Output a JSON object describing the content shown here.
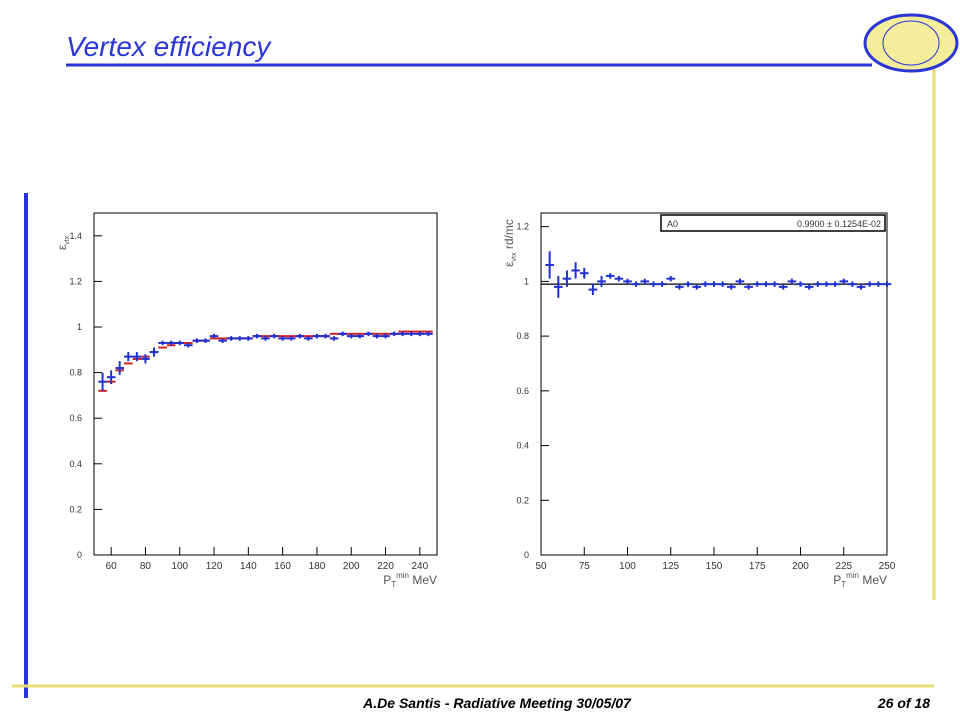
{
  "title": "Vertex efficiency",
  "footer": "A.De Santis - Radiative Meeting 30/05/07",
  "page": "26 of 18",
  "chart_data": [
    {
      "type": "scatter",
      "xlabel": {
        "main": "P",
        "sub": "T",
        "sup": "min",
        "unit": " MeV"
      },
      "ylabel": {
        "main": "ε",
        "sub": "vtx"
      },
      "xlim": [
        50,
        250
      ],
      "xticks": [
        60,
        80,
        100,
        120,
        140,
        160,
        180,
        200,
        220,
        240
      ],
      "ylim": [
        0,
        1.5
      ],
      "yticks": [
        0,
        0.2,
        0.4,
        0.6,
        0.8,
        1,
        1.2,
        1.4
      ],
      "series": [
        {
          "color": "#d42020",
          "style": "step",
          "x": [
            55,
            60,
            65,
            70,
            75,
            80,
            85,
            90,
            95,
            100,
            105,
            110,
            115,
            120,
            125,
            130,
            135,
            140,
            145,
            150,
            155,
            160,
            165,
            170,
            175,
            180,
            185,
            190,
            195,
            200,
            205,
            210,
            215,
            220,
            225,
            230,
            235,
            240,
            245
          ],
          "values": [
            0.72,
            0.76,
            0.81,
            0.84,
            0.86,
            0.87,
            0.89,
            0.91,
            0.92,
            0.93,
            0.93,
            0.94,
            0.94,
            0.95,
            0.95,
            0.95,
            0.95,
            0.95,
            0.96,
            0.96,
            0.96,
            0.96,
            0.96,
            0.96,
            0.96,
            0.96,
            0.96,
            0.97,
            0.97,
            0.97,
            0.97,
            0.97,
            0.97,
            0.97,
            0.97,
            0.98,
            0.98,
            0.98,
            0.98
          ]
        },
        {
          "color": "#2030d0",
          "style": "errorbar",
          "x": [
            55,
            60,
            65,
            70,
            75,
            80,
            85,
            90,
            95,
            100,
            105,
            110,
            115,
            120,
            125,
            130,
            135,
            140,
            145,
            150,
            155,
            160,
            165,
            170,
            175,
            180,
            185,
            190,
            195,
            200,
            205,
            210,
            215,
            220,
            225,
            230,
            235,
            240,
            245
          ],
          "values": [
            0.76,
            0.78,
            0.82,
            0.87,
            0.87,
            0.86,
            0.89,
            0.93,
            0.93,
            0.93,
            0.92,
            0.94,
            0.94,
            0.96,
            0.94,
            0.95,
            0.95,
            0.95,
            0.96,
            0.95,
            0.96,
            0.95,
            0.95,
            0.96,
            0.95,
            0.96,
            0.96,
            0.95,
            0.97,
            0.96,
            0.96,
            0.97,
            0.96,
            0.96,
            0.97,
            0.97,
            0.97,
            0.97,
            0.97
          ],
          "errors": [
            0.04,
            0.03,
            0.03,
            0.02,
            0.02,
            0.02,
            0.02,
            0.01,
            0.01,
            0.01,
            0.01,
            0.01,
            0.01,
            0.01,
            0.01,
            0.01,
            0.01,
            0.01,
            0.01,
            0.01,
            0.01,
            0.01,
            0.01,
            0.01,
            0.01,
            0.01,
            0.01,
            0.01,
            0.01,
            0.01,
            0.01,
            0.01,
            0.01,
            0.01,
            0.01,
            0.01,
            0.01,
            0.01,
            0.01
          ]
        }
      ]
    },
    {
      "type": "scatter",
      "xlabel": {
        "main": "P",
        "sub": "T",
        "sup": "min",
        "unit": " MeV"
      },
      "ylabel": {
        "main": "ε",
        "sub": "vtx",
        "rest": " rd/mc"
      },
      "xlim": [
        50,
        250
      ],
      "xticks": [
        50,
        75,
        100,
        125,
        150,
        175,
        200,
        225,
        250
      ],
      "ylim": [
        0,
        1.25
      ],
      "yticks": [
        0,
        0.2,
        0.4,
        0.6,
        0.8,
        1,
        1.2
      ],
      "fit_line": 0.99,
      "fit_box": {
        "name": "A0",
        "text": "0.9900 ±  0.1254E-02"
      },
      "series": [
        {
          "color": "#2030d0",
          "style": "errorbar",
          "x": [
            55,
            60,
            65,
            70,
            75,
            80,
            85,
            90,
            95,
            100,
            105,
            110,
            115,
            120,
            125,
            130,
            135,
            140,
            145,
            150,
            155,
            160,
            165,
            170,
            175,
            180,
            185,
            190,
            195,
            200,
            205,
            210,
            215,
            220,
            225,
            230,
            235,
            240,
            245,
            250
          ],
          "values": [
            1.06,
            0.98,
            1.01,
            1.04,
            1.03,
            0.97,
            1.0,
            1.02,
            1.01,
            1.0,
            0.99,
            1.0,
            0.99,
            0.99,
            1.01,
            0.98,
            0.99,
            0.98,
            0.99,
            0.99,
            0.99,
            0.98,
            1.0,
            0.98,
            0.99,
            0.99,
            0.99,
            0.98,
            1.0,
            0.99,
            0.98,
            0.99,
            0.99,
            0.99,
            1.0,
            0.99,
            0.98,
            0.99,
            0.99,
            0.99
          ],
          "errors": [
            0.05,
            0.04,
            0.03,
            0.03,
            0.02,
            0.02,
            0.02,
            0.01,
            0.01,
            0.01,
            0.01,
            0.01,
            0.01,
            0.01,
            0.01,
            0.01,
            0.01,
            0.01,
            0.01,
            0.01,
            0.01,
            0.01,
            0.01,
            0.01,
            0.01,
            0.01,
            0.01,
            0.01,
            0.01,
            0.01,
            0.01,
            0.01,
            0.01,
            0.01,
            0.01,
            0.01,
            0.01,
            0.01,
            0.01,
            0.01
          ]
        }
      ]
    }
  ]
}
